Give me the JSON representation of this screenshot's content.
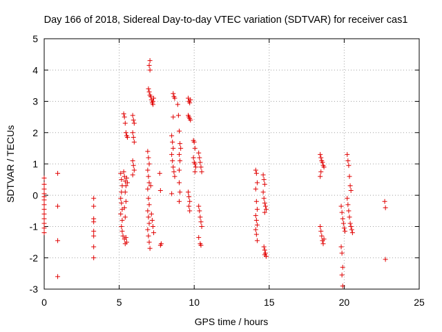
{
  "chart_data": {
    "type": "scatter",
    "title": "Day 166 of 2018, Sidereal Day-to-day VTEC variation (SDTVAR) for receiver cas1",
    "xlabel": "GPS time / hours",
    "ylabel": "SDTVAR / TECUs",
    "xlim": [
      0,
      25
    ],
    "ylim": [
      -3,
      5
    ],
    "xticks": [
      "0",
      "5",
      "10",
      "15",
      "20",
      "25"
    ],
    "yticks": [
      "-3",
      "-2",
      "-1",
      "0",
      "1",
      "2",
      "3",
      "4",
      "5"
    ],
    "grid": true,
    "marker": "plus",
    "series": [
      {
        "name": "SDTVAR",
        "color": "#e00000",
        "points": [
          [
            0.0,
            0.55
          ],
          [
            0.0,
            0.35
          ],
          [
            0.0,
            0.2
          ],
          [
            0.0,
            0.05
          ],
          [
            0.0,
            -0.05
          ],
          [
            0.0,
            -0.15
          ],
          [
            0.0,
            -0.3
          ],
          [
            0.0,
            -0.45
          ],
          [
            0.0,
            -0.6
          ],
          [
            0.0,
            -0.75
          ],
          [
            0.0,
            -0.9
          ],
          [
            0.0,
            -1.05
          ],
          [
            0.0,
            -1.2
          ],
          [
            0.9,
            0.7
          ],
          [
            0.9,
            -0.35
          ],
          [
            0.9,
            -1.45
          ],
          [
            0.9,
            -2.6
          ],
          [
            3.3,
            -0.1
          ],
          [
            3.3,
            -0.35
          ],
          [
            3.3,
            -0.75
          ],
          [
            3.3,
            -0.85
          ],
          [
            3.3,
            -1.15
          ],
          [
            3.3,
            -1.3
          ],
          [
            3.3,
            -1.65
          ],
          [
            3.3,
            -2.0
          ],
          [
            5.1,
            0.7
          ],
          [
            5.15,
            0.5
          ],
          [
            5.2,
            0.3
          ],
          [
            5.15,
            0.1
          ],
          [
            5.1,
            -0.1
          ],
          [
            5.15,
            -0.25
          ],
          [
            5.2,
            -0.45
          ],
          [
            5.1,
            -0.6
          ],
          [
            5.2,
            -0.8
          ],
          [
            5.15,
            -1.0
          ],
          [
            5.2,
            -1.15
          ],
          [
            5.25,
            -1.3
          ],
          [
            5.3,
            0.75
          ],
          [
            5.35,
            0.6
          ],
          [
            5.4,
            0.45
          ],
          [
            5.45,
            0.3
          ],
          [
            5.5,
            0.55
          ],
          [
            5.55,
            0.4
          ],
          [
            5.35,
            -1.4
          ],
          [
            5.4,
            -1.55
          ],
          [
            5.45,
            -1.35
          ],
          [
            5.5,
            -1.5
          ],
          [
            5.3,
            2.6
          ],
          [
            5.35,
            2.5
          ],
          [
            5.4,
            2.3
          ],
          [
            5.45,
            2.0
          ],
          [
            5.5,
            1.9
          ],
          [
            5.55,
            1.85
          ],
          [
            5.4,
            0.1
          ],
          [
            5.45,
            -0.2
          ],
          [
            5.35,
            -0.4
          ],
          [
            5.4,
            -0.7
          ],
          [
            5.9,
            2.55
          ],
          [
            5.95,
            2.4
          ],
          [
            6.0,
            2.3
          ],
          [
            5.9,
            2.0
          ],
          [
            5.95,
            1.85
          ],
          [
            6.0,
            1.7
          ],
          [
            5.9,
            1.1
          ],
          [
            5.95,
            0.95
          ],
          [
            6.0,
            0.8
          ],
          [
            5.9,
            0.65
          ],
          [
            6.9,
            1.4
          ],
          [
            6.95,
            1.2
          ],
          [
            7.0,
            1.0
          ],
          [
            6.9,
            0.8
          ],
          [
            6.95,
            0.6
          ],
          [
            7.0,
            0.4
          ],
          [
            6.9,
            0.2
          ],
          [
            6.95,
            -0.1
          ],
          [
            7.0,
            -0.3
          ],
          [
            6.9,
            -0.5
          ],
          [
            6.95,
            -0.7
          ],
          [
            7.0,
            -0.9
          ],
          [
            6.9,
            -1.1
          ],
          [
            6.95,
            -1.3
          ],
          [
            7.0,
            -1.5
          ],
          [
            7.05,
            -1.7
          ],
          [
            7.05,
            4.3
          ],
          [
            7.0,
            4.15
          ],
          [
            7.05,
            4.0
          ],
          [
            6.95,
            3.4
          ],
          [
            7.0,
            3.3
          ],
          [
            7.05,
            3.2
          ],
          [
            7.1,
            3.15
          ],
          [
            7.15,
            3.05
          ],
          [
            7.2,
            2.95
          ],
          [
            7.25,
            3.0
          ],
          [
            7.3,
            3.1
          ],
          [
            7.25,
            2.9
          ],
          [
            7.1,
            0.3
          ],
          [
            7.15,
            -0.6
          ],
          [
            7.2,
            -0.8
          ],
          [
            7.25,
            -1.0
          ],
          [
            7.3,
            -1.2
          ],
          [
            7.7,
            0.7
          ],
          [
            7.75,
            0.15
          ],
          [
            7.8,
            -1.55
          ],
          [
            7.75,
            -1.6
          ],
          [
            8.5,
            1.9
          ],
          [
            8.55,
            1.7
          ],
          [
            8.6,
            1.5
          ],
          [
            8.5,
            1.3
          ],
          [
            8.55,
            1.1
          ],
          [
            8.6,
            0.9
          ],
          [
            8.65,
            0.75
          ],
          [
            8.7,
            0.6
          ],
          [
            8.5,
            0.05
          ],
          [
            8.6,
            3.25
          ],
          [
            8.65,
            3.15
          ],
          [
            8.7,
            3.1
          ],
          [
            8.6,
            2.5
          ],
          [
            8.9,
            2.9
          ],
          [
            8.95,
            2.55
          ],
          [
            9.0,
            2.05
          ],
          [
            9.05,
            1.65
          ],
          [
            9.1,
            1.5
          ],
          [
            9.0,
            1.3
          ],
          [
            9.05,
            1.1
          ],
          [
            9.0,
            0.8
          ],
          [
            9.0,
            0.4
          ],
          [
            9.05,
            0.1
          ],
          [
            9.0,
            -0.2
          ],
          [
            9.6,
            3.1
          ],
          [
            9.65,
            3.0
          ],
          [
            9.7,
            2.95
          ],
          [
            9.75,
            3.05
          ],
          [
            9.6,
            2.55
          ],
          [
            9.65,
            2.5
          ],
          [
            9.7,
            2.45
          ],
          [
            9.75,
            2.4
          ],
          [
            9.6,
            0.1
          ],
          [
            9.65,
            -0.05
          ],
          [
            9.7,
            -0.2
          ],
          [
            9.65,
            -0.35
          ],
          [
            9.7,
            -0.5
          ],
          [
            9.95,
            1.75
          ],
          [
            10.0,
            1.7
          ],
          [
            10.05,
            1.5
          ],
          [
            9.95,
            1.2
          ],
          [
            10.0,
            1.05
          ],
          [
            10.05,
            1.0
          ],
          [
            10.1,
            0.9
          ],
          [
            10.05,
            0.75
          ],
          [
            10.3,
            1.35
          ],
          [
            10.35,
            1.2
          ],
          [
            10.4,
            1.05
          ],
          [
            10.45,
            0.9
          ],
          [
            10.5,
            0.75
          ],
          [
            10.3,
            -0.35
          ],
          [
            10.35,
            -0.5
          ],
          [
            10.4,
            -0.7
          ],
          [
            10.45,
            -0.85
          ],
          [
            10.5,
            -1.0
          ],
          [
            10.3,
            -1.35
          ],
          [
            10.4,
            -1.55
          ],
          [
            10.45,
            -1.6
          ],
          [
            14.1,
            0.8
          ],
          [
            14.15,
            0.7
          ],
          [
            14.2,
            0.4
          ],
          [
            14.1,
            0.2
          ],
          [
            14.15,
            -0.2
          ],
          [
            14.2,
            -0.45
          ],
          [
            14.1,
            -0.65
          ],
          [
            14.15,
            -0.8
          ],
          [
            14.2,
            -0.95
          ],
          [
            14.1,
            -1.1
          ],
          [
            14.15,
            -1.25
          ],
          [
            14.2,
            -1.45
          ],
          [
            14.6,
            0.65
          ],
          [
            14.65,
            0.5
          ],
          [
            14.7,
            0.35
          ],
          [
            14.6,
            0.1
          ],
          [
            14.65,
            -0.1
          ],
          [
            14.7,
            -0.25
          ],
          [
            14.75,
            -0.35
          ],
          [
            14.8,
            -0.45
          ],
          [
            14.7,
            -0.55
          ],
          [
            14.65,
            -1.65
          ],
          [
            14.7,
            -1.75
          ],
          [
            14.75,
            -1.85
          ],
          [
            14.8,
            -1.95
          ],
          [
            14.7,
            -1.9
          ],
          [
            18.4,
            1.3
          ],
          [
            18.45,
            1.2
          ],
          [
            18.5,
            1.1
          ],
          [
            18.55,
            1.05
          ],
          [
            18.6,
            0.95
          ],
          [
            18.65,
            0.9
          ],
          [
            18.45,
            0.75
          ],
          [
            18.4,
            0.6
          ],
          [
            18.4,
            -1.0
          ],
          [
            18.45,
            -1.15
          ],
          [
            18.5,
            -1.3
          ],
          [
            18.55,
            -1.45
          ],
          [
            18.6,
            -1.55
          ],
          [
            18.65,
            -1.4
          ],
          [
            19.8,
            -0.35
          ],
          [
            19.85,
            -0.55
          ],
          [
            19.9,
            -0.75
          ],
          [
            19.95,
            -0.9
          ],
          [
            20.0,
            -1.05
          ],
          [
            20.05,
            -1.15
          ],
          [
            19.8,
            -1.65
          ],
          [
            19.85,
            -1.85
          ],
          [
            19.9,
            -2.3
          ],
          [
            19.85,
            -2.55
          ],
          [
            19.9,
            -2.9
          ],
          [
            20.2,
            1.3
          ],
          [
            20.25,
            1.1
          ],
          [
            20.3,
            0.95
          ],
          [
            20.35,
            0.6
          ],
          [
            20.4,
            0.3
          ],
          [
            20.45,
            0.15
          ],
          [
            20.2,
            -0.1
          ],
          [
            20.25,
            -0.3
          ],
          [
            20.3,
            -0.5
          ],
          [
            20.35,
            -0.7
          ],
          [
            20.4,
            -0.9
          ],
          [
            20.45,
            -1.0
          ],
          [
            20.5,
            -1.1
          ],
          [
            20.55,
            -1.2
          ],
          [
            22.7,
            -0.2
          ],
          [
            22.75,
            -0.4
          ],
          [
            22.75,
            -2.05
          ]
        ]
      }
    ]
  }
}
